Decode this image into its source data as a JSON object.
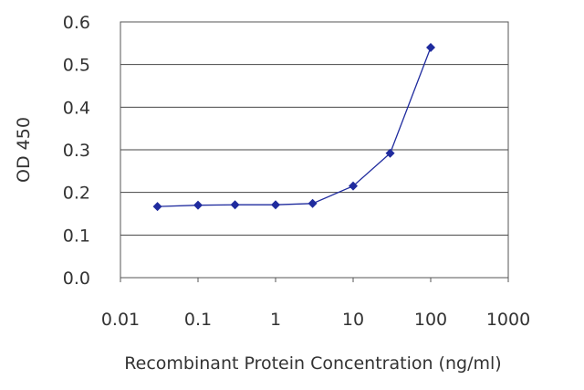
{
  "chart_data": {
    "type": "line",
    "title": "",
    "xlabel": "Recombinant Protein Concentration (ng/ml)",
    "ylabel": "OD 450",
    "x_scale": "log",
    "xlim": [
      0.01,
      1000
    ],
    "ylim": [
      0.0,
      0.6
    ],
    "x_ticks": [
      "0.01",
      "0.1",
      "1",
      "10",
      "100",
      "1000"
    ],
    "y_ticks": [
      "0.0",
      "0.1",
      "0.2",
      "0.3",
      "0.4",
      "0.5",
      "0.6"
    ],
    "grid": "horizontal",
    "legend": "none",
    "series": [
      {
        "x": [
          0.03,
          0.1,
          0.3,
          1,
          3,
          10,
          30,
          100
        ],
        "y": [
          0.167,
          0.17,
          0.171,
          0.171,
          0.174,
          0.215,
          0.292,
          0.54
        ],
        "color": "#1f2b9e"
      }
    ]
  }
}
